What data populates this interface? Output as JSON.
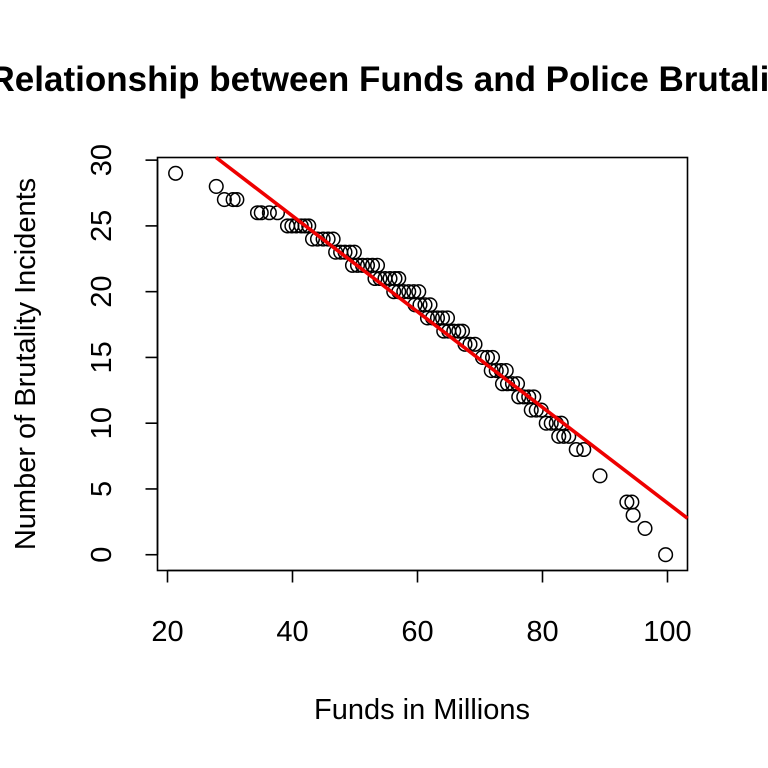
{
  "chart_data": {
    "type": "scatter",
    "title": "Relationship between Funds and Police Brutality",
    "xlabel": "Funds in Millions",
    "ylabel": "Number of Brutality Incidents",
    "xlim": [
      18.4,
      103.2
    ],
    "ylim": [
      -1.2,
      30.2
    ],
    "x_ticks": [
      20,
      40,
      60,
      80,
      100
    ],
    "y_ticks": [
      0,
      5,
      10,
      15,
      20,
      25,
      30
    ],
    "grid": false,
    "legend": "none",
    "series": [
      {
        "points": [
          [
            21.3,
            29
          ],
          [
            27.8,
            28
          ],
          [
            29.1,
            27
          ],
          [
            30.5,
            27
          ],
          [
            31.1,
            27
          ],
          [
            34.4,
            26
          ],
          [
            35.0,
            26
          ],
          [
            36.3,
            26
          ],
          [
            37.6,
            26
          ],
          [
            39.2,
            25
          ],
          [
            39.9,
            25
          ],
          [
            40.6,
            25
          ],
          [
            41.4,
            25
          ],
          [
            42.0,
            25
          ],
          [
            42.6,
            25
          ],
          [
            43.2,
            24
          ],
          [
            44.0,
            24
          ],
          [
            44.9,
            24
          ],
          [
            45.7,
            24
          ],
          [
            46.5,
            24
          ],
          [
            46.9,
            23
          ],
          [
            47.7,
            23
          ],
          [
            48.4,
            23
          ],
          [
            49.2,
            23
          ],
          [
            49.9,
            23
          ],
          [
            49.6,
            22
          ],
          [
            50.4,
            22
          ],
          [
            51.2,
            22
          ],
          [
            52.0,
            22
          ],
          [
            52.8,
            22
          ],
          [
            53.6,
            22
          ],
          [
            53.2,
            21
          ],
          [
            54.0,
            21
          ],
          [
            54.8,
            21
          ],
          [
            55.6,
            21
          ],
          [
            56.4,
            21
          ],
          [
            57.0,
            21
          ],
          [
            56.2,
            20
          ],
          [
            57.0,
            20
          ],
          [
            57.8,
            20
          ],
          [
            58.6,
            20
          ],
          [
            59.4,
            20
          ],
          [
            60.2,
            20
          ],
          [
            59.6,
            19
          ],
          [
            60.4,
            19
          ],
          [
            61.2,
            19
          ],
          [
            62.0,
            19
          ],
          [
            61.6,
            18
          ],
          [
            62.4,
            18
          ],
          [
            63.2,
            18
          ],
          [
            64.0,
            18
          ],
          [
            64.8,
            18
          ],
          [
            64.2,
            17
          ],
          [
            65.0,
            17
          ],
          [
            65.8,
            17
          ],
          [
            66.6,
            17
          ],
          [
            67.2,
            17
          ],
          [
            67.6,
            16
          ],
          [
            68.4,
            16
          ],
          [
            69.2,
            16
          ],
          [
            70.4,
            15
          ],
          [
            71.2,
            15
          ],
          [
            72.0,
            15
          ],
          [
            71.8,
            14
          ],
          [
            72.6,
            14
          ],
          [
            73.4,
            14
          ],
          [
            74.2,
            14
          ],
          [
            73.6,
            13
          ],
          [
            74.4,
            13
          ],
          [
            75.2,
            13
          ],
          [
            76.0,
            13
          ],
          [
            76.2,
            12
          ],
          [
            77.0,
            12
          ],
          [
            77.8,
            12
          ],
          [
            78.6,
            12
          ],
          [
            78.2,
            11
          ],
          [
            79.0,
            11
          ],
          [
            79.8,
            11
          ],
          [
            80.6,
            10
          ],
          [
            81.4,
            10
          ],
          [
            82.2,
            10
          ],
          [
            83.0,
            10
          ],
          [
            82.6,
            9
          ],
          [
            83.4,
            9
          ],
          [
            84.2,
            9
          ],
          [
            85.4,
            8
          ],
          [
            86.6,
            8
          ],
          [
            89.2,
            6
          ],
          [
            93.5,
            4
          ],
          [
            94.3,
            4
          ],
          [
            94.5,
            3
          ],
          [
            96.4,
            2
          ],
          [
            99.7,
            0
          ]
        ]
      }
    ],
    "fit_line": {
      "color": "#ee0000",
      "slope": -0.3637,
      "intercept": 40.3
    },
    "point_color": "#000000"
  }
}
